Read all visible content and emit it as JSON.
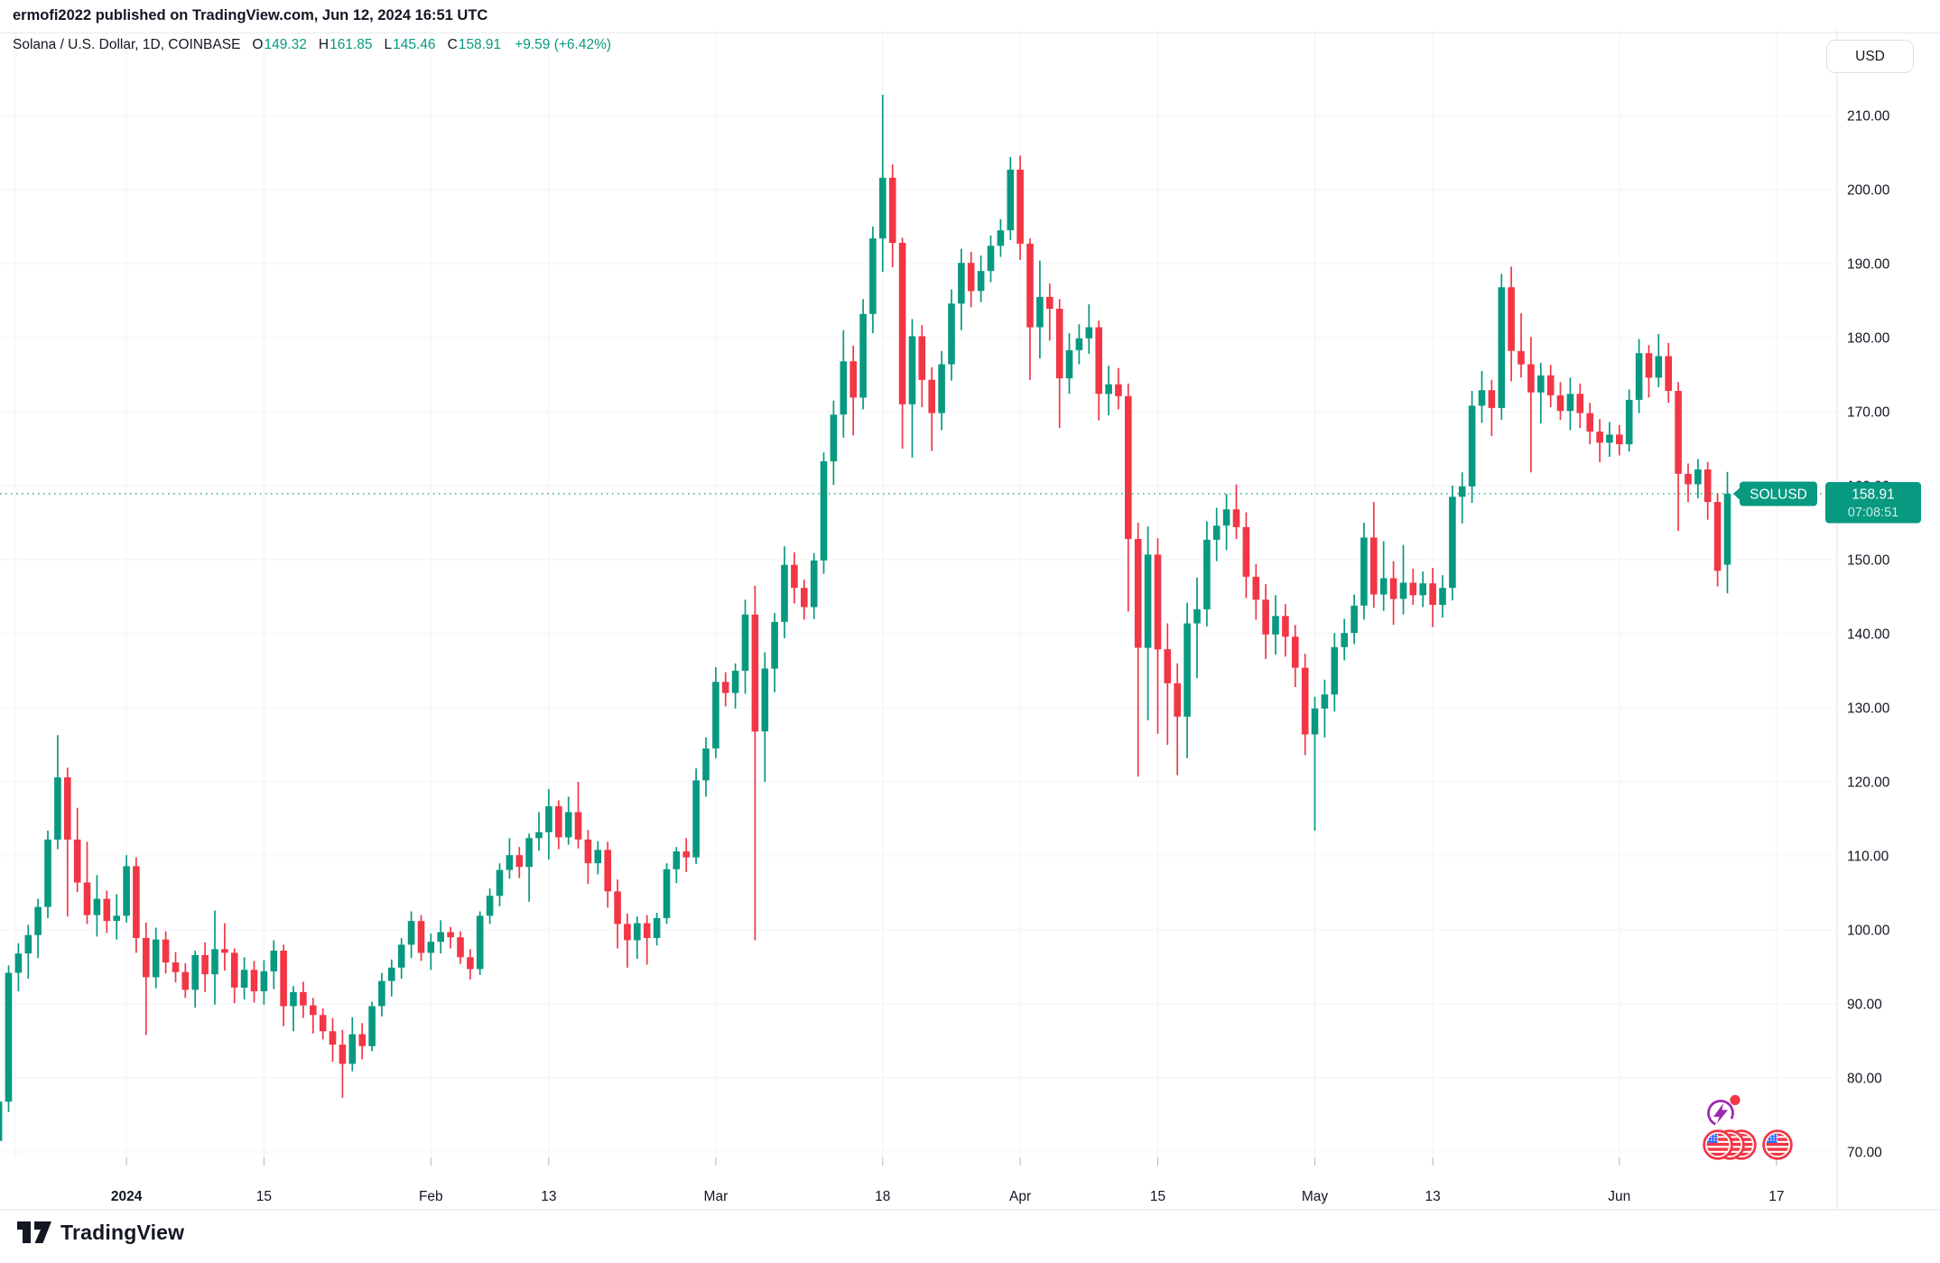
{
  "header": {
    "published_line": "ermofi2022 published on TradingView.com, Jun 12, 2024 16:51 UTC"
  },
  "toolbar": {
    "currency_button": "USD"
  },
  "symbol_info": {
    "title": "Solana / U.S. Dollar, 1D, COINBASE",
    "ohlc": {
      "o_label": "O",
      "o_value": "149.32",
      "h_label": "H",
      "h_value": "161.85",
      "l_label": "L",
      "l_value": "145.46",
      "c_label": "C",
      "c_value": "158.91",
      "change": "+9.59 (+6.42%)"
    }
  },
  "price_label": {
    "symbol": "SOLUSD",
    "price": "158.91",
    "countdown": "07:08:51"
  },
  "logo": {
    "brand": "TradingView"
  },
  "colors": {
    "up": "#089981",
    "down": "#f23645",
    "grid": "#f0f3fa",
    "axis_text": "#131722",
    "separator": "#e0e3eb",
    "badge_bg": "#089981",
    "flash_icon": "#9c27b0",
    "flag_ring": "#f23645",
    "flag_canton": "#2962ff",
    "alert_dot": "#f23645"
  },
  "event_icons": {
    "flash_event": "economic-flash-event-icon",
    "us_flag_events_grouped": 3,
    "us_flag_events_single": 1
  },
  "chart_data": {
    "type": "candlestick",
    "title": "Solana / U.S. Dollar, 1D, COINBASE",
    "symbol": "SOLUSD",
    "interval": "1D",
    "exchange": "COINBASE",
    "last_price": 158.91,
    "ylim": [
      62,
      222
    ],
    "y_axis": {
      "tick_min": 70,
      "tick_max": 210,
      "tick_step": 10,
      "decimals": 2
    },
    "x_axis": {
      "start_date": "2023-12-18",
      "labels": [
        {
          "t": "2024",
          "offset": 14,
          "bold": true
        },
        {
          "t": "15",
          "offset": 28
        },
        {
          "t": "Feb",
          "offset": 45
        },
        {
          "t": "13",
          "offset": 57
        },
        {
          "t": "Mar",
          "offset": 74
        },
        {
          "t": "18",
          "offset": 91
        },
        {
          "t": "Apr",
          "offset": 105
        },
        {
          "t": "15",
          "offset": 119
        },
        {
          "t": "May",
          "offset": 135
        },
        {
          "t": "13",
          "offset": 147
        },
        {
          "t": "Jun",
          "offset": 166
        },
        {
          "t": "17",
          "offset": 182
        }
      ]
    },
    "candles_format": [
      "open",
      "high",
      "low",
      "close"
    ],
    "candles": [
      [
        73,
        74.5,
        69.8,
        71.5
      ],
      [
        71.5,
        77.9,
        70.9,
        76.8
      ],
      [
        76.8,
        95.2,
        75.4,
        94.2
      ],
      [
        94.2,
        98.2,
        91.7,
        96.8
      ],
      [
        96.8,
        100.7,
        93.4,
        99.3
      ],
      [
        99.3,
        104.2,
        96.2,
        103.1
      ],
      [
        103.1,
        113.4,
        101.6,
        112.2
      ],
      [
        112.2,
        126.3,
        110.9,
        120.6
      ],
      [
        120.6,
        121.9,
        101.8,
        112.2
      ],
      [
        112.2,
        116.5,
        105.1,
        106.4
      ],
      [
        106.4,
        111.9,
        100.8,
        102
      ],
      [
        102,
        107.4,
        99.1,
        104.2
      ],
      [
        104.2,
        105.3,
        99.6,
        101.2
      ],
      [
        101.2,
        104.8,
        98.7,
        101.9
      ],
      [
        101.9,
        110.1,
        101,
        108.6
      ],
      [
        108.6,
        109.8,
        96.9,
        98.9
      ],
      [
        98.9,
        101,
        85.8,
        93.6
      ],
      [
        93.6,
        100.3,
        92.1,
        98.7
      ],
      [
        98.7,
        99.8,
        94.1,
        95.6
      ],
      [
        95.6,
        97,
        92.9,
        94.3
      ],
      [
        94.3,
        95.5,
        90.8,
        91.9
      ],
      [
        91.9,
        97.2,
        89.5,
        96.6
      ],
      [
        96.6,
        98.3,
        91.6,
        94
      ],
      [
        94,
        102.6,
        89.9,
        97.4
      ],
      [
        97.4,
        100.9,
        94.5,
        96.9
      ],
      [
        96.9,
        97.5,
        90.1,
        92.2
      ],
      [
        92.2,
        96.3,
        90.6,
        94.6
      ],
      [
        94.6,
        95.8,
        90.2,
        91.7
      ],
      [
        91.7,
        95.9,
        89.9,
        94.4
      ],
      [
        94.4,
        98.6,
        92,
        97.2
      ],
      [
        97.2,
        98,
        87,
        89.7
      ],
      [
        89.7,
        92.4,
        86.3,
        91.6
      ],
      [
        91.6,
        93,
        88.1,
        89.8
      ],
      [
        89.8,
        90.8,
        86,
        88.5
      ],
      [
        88.5,
        89.4,
        85.2,
        86.3
      ],
      [
        86.3,
        88.1,
        82.2,
        84.5
      ],
      [
        84.5,
        86.5,
        77.3,
        81.9
      ],
      [
        81.9,
        88.2,
        80.9,
        85.9
      ],
      [
        85.9,
        87.4,
        82.5,
        84.3
      ],
      [
        84.3,
        90.3,
        83.6,
        89.7
      ],
      [
        89.7,
        94.2,
        88.3,
        93.1
      ],
      [
        93.1,
        96,
        91,
        94.9
      ],
      [
        94.9,
        98.9,
        93.4,
        98
      ],
      [
        98,
        102.5,
        96.2,
        101.2
      ],
      [
        101.2,
        102,
        95.8,
        96.9
      ],
      [
        96.9,
        99.5,
        94.6,
        98.4
      ],
      [
        98.4,
        101.3,
        96.8,
        99.7
      ],
      [
        99.7,
        100.4,
        97.5,
        99
      ],
      [
        99,
        99.8,
        95.4,
        96.3
      ],
      [
        96.3,
        97.4,
        93.3,
        94.7
      ],
      [
        94.7,
        102.5,
        93.9,
        101.9
      ],
      [
        101.9,
        105.6,
        100.8,
        104.6
      ],
      [
        104.6,
        109,
        103.2,
        108.1
      ],
      [
        108.1,
        112.4,
        106.9,
        110.1
      ],
      [
        110.1,
        111.2,
        107,
        108.5
      ],
      [
        108.5,
        113,
        103.8,
        112.4
      ],
      [
        112.4,
        115.9,
        110.7,
        113.2
      ],
      [
        113.2,
        119,
        109.5,
        116.7
      ],
      [
        116.7,
        117.5,
        110.9,
        112.5
      ],
      [
        112.5,
        118,
        111.5,
        115.9
      ],
      [
        115.9,
        120,
        111,
        112.2
      ],
      [
        112.2,
        113.5,
        106.2,
        109
      ],
      [
        109,
        112,
        107.5,
        110.8
      ],
      [
        110.8,
        111.9,
        103,
        105.2
      ],
      [
        105.2,
        106.8,
        97.5,
        100.8
      ],
      [
        100.8,
        102.2,
        94.9,
        98.6
      ],
      [
        98.6,
        101.8,
        96.1,
        100.9
      ],
      [
        100.9,
        102,
        95.3,
        98.9
      ],
      [
        98.9,
        102.3,
        97.9,
        101.6
      ],
      [
        101.6,
        109,
        100.8,
        108.2
      ],
      [
        108.2,
        111.2,
        106.3,
        110.6
      ],
      [
        110.6,
        112.4,
        107.8,
        109.8
      ],
      [
        109.8,
        121.8,
        108.9,
        120.2
      ],
      [
        120.2,
        126,
        118,
        124.5
      ],
      [
        124.5,
        135.5,
        123.2,
        133.5
      ],
      [
        133.5,
        134.8,
        130.2,
        132
      ],
      [
        132,
        136,
        129.9,
        135
      ],
      [
        135,
        144.6,
        131.9,
        142.6
      ],
      [
        142.6,
        146.5,
        98.6,
        126.8
      ],
      [
        126.8,
        137.5,
        120,
        135.3
      ],
      [
        135.3,
        142.8,
        132.1,
        141.6
      ],
      [
        141.6,
        151.8,
        139.4,
        149.3
      ],
      [
        149.3,
        151,
        144.1,
        146.2
      ],
      [
        146.2,
        147.3,
        141.9,
        143.6
      ],
      [
        143.6,
        150.9,
        142,
        149.9
      ],
      [
        149.9,
        164.5,
        148.1,
        163.3
      ],
      [
        163.3,
        171.5,
        160.1,
        169.6
      ],
      [
        169.6,
        181,
        166.5,
        176.8
      ],
      [
        176.8,
        178.9,
        166.8,
        171.9
      ],
      [
        171.9,
        185.2,
        170.3,
        183.2
      ],
      [
        183.2,
        195,
        180.6,
        193.4
      ],
      [
        193.4,
        212.8,
        188.9,
        201.6
      ],
      [
        201.6,
        203.4,
        189.5,
        192.8
      ],
      [
        192.8,
        193.5,
        165,
        171
      ],
      [
        171,
        182.5,
        163.8,
        180.2
      ],
      [
        180.2,
        181.7,
        170.6,
        174.3
      ],
      [
        174.3,
        176,
        164.7,
        169.8
      ],
      [
        169.8,
        178.2,
        167.5,
        176.4
      ],
      [
        176.4,
        186.5,
        174.2,
        184.6
      ],
      [
        184.6,
        192,
        181,
        190.1
      ],
      [
        190.1,
        191.6,
        184.1,
        186.3
      ],
      [
        186.3,
        191.1,
        184.8,
        189
      ],
      [
        189,
        193.8,
        187.5,
        192.4
      ],
      [
        192.4,
        196,
        190.9,
        194.5
      ],
      [
        194.5,
        204.4,
        193.2,
        202.7
      ],
      [
        202.7,
        204.6,
        190.5,
        192.7
      ],
      [
        192.7,
        193.4,
        174.3,
        181.4
      ],
      [
        181.4,
        190.4,
        177.2,
        185.5
      ],
      [
        185.5,
        187.3,
        179.6,
        183.9
      ],
      [
        183.9,
        185.2,
        167.8,
        174.5
      ],
      [
        174.5,
        180.6,
        172.4,
        178.3
      ],
      [
        178.3,
        181.8,
        176.4,
        179.9
      ],
      [
        179.9,
        184.5,
        177.8,
        181.4
      ],
      [
        181.4,
        182.3,
        168.8,
        172.4
      ],
      [
        172.4,
        176.2,
        169.5,
        173.7
      ],
      [
        173.7,
        175.9,
        170.3,
        172.1
      ],
      [
        172.1,
        173.8,
        143,
        152.8
      ],
      [
        152.8,
        155,
        120.7,
        138.1
      ],
      [
        138.1,
        154.5,
        128.3,
        150.7
      ],
      [
        150.7,
        152.9,
        126.5,
        137.9
      ],
      [
        137.9,
        141.4,
        125,
        133.3
      ],
      [
        133.3,
        136,
        120.9,
        128.8
      ],
      [
        128.8,
        144.2,
        123.2,
        141.4
      ],
      [
        141.4,
        147.6,
        134,
        143.3
      ],
      [
        143.3,
        155.2,
        141,
        152.7
      ],
      [
        152.7,
        157,
        149.8,
        154.6
      ],
      [
        154.6,
        158.9,
        151.3,
        156.8
      ],
      [
        156.8,
        160.2,
        152.8,
        154.4
      ],
      [
        154.4,
        156.4,
        144.8,
        147.7
      ],
      [
        147.7,
        149.4,
        141.9,
        144.6
      ],
      [
        144.6,
        146.7,
        136.6,
        139.9
      ],
      [
        139.9,
        145.2,
        137.2,
        142.4
      ],
      [
        142.4,
        144,
        136.9,
        139.6
      ],
      [
        139.6,
        141.2,
        132.8,
        135.4
      ],
      [
        135.4,
        137.3,
        123.6,
        126.4
      ],
      [
        126.4,
        131.5,
        113.4,
        129.9
      ],
      [
        129.9,
        133.8,
        126,
        131.8
      ],
      [
        131.8,
        140.1,
        129.5,
        138.2
      ],
      [
        138.2,
        142,
        136.4,
        140.1
      ],
      [
        140.1,
        145.3,
        138.6,
        143.8
      ],
      [
        143.8,
        155,
        141.9,
        153
      ],
      [
        153,
        157.8,
        143.5,
        145.3
      ],
      [
        145.3,
        152.5,
        143.1,
        147.5
      ],
      [
        147.5,
        149.8,
        141.2,
        144.7
      ],
      [
        144.7,
        152,
        142.6,
        146.9
      ],
      [
        146.9,
        148.8,
        143.9,
        145.2
      ],
      [
        145.2,
        148.4,
        143.6,
        146.8
      ],
      [
        146.8,
        148.9,
        140.9,
        143.9
      ],
      [
        143.9,
        147.9,
        142.2,
        146.2
      ],
      [
        146.2,
        160,
        144.5,
        158.5
      ],
      [
        158.5,
        161.8,
        154.9,
        159.9
      ],
      [
        159.9,
        172.8,
        157.7,
        170.8
      ],
      [
        170.8,
        175.5,
        168.5,
        172.9
      ],
      [
        172.9,
        174.3,
        166.7,
        170.5
      ],
      [
        170.5,
        188.6,
        168.9,
        186.8
      ],
      [
        186.8,
        189.6,
        174.1,
        178.2
      ],
      [
        178.2,
        183.3,
        174.6,
        176.4
      ],
      [
        176.4,
        180.1,
        161.8,
        172.6
      ],
      [
        172.6,
        176.6,
        168.4,
        174.9
      ],
      [
        174.9,
        176.3,
        170.6,
        172.2
      ],
      [
        172.2,
        174,
        168.9,
        170.1
      ],
      [
        170.1,
        174.6,
        167.5,
        172.4
      ],
      [
        172.4,
        173.8,
        167.8,
        169.8
      ],
      [
        169.8,
        171.2,
        165.6,
        167.3
      ],
      [
        167.3,
        169,
        163.2,
        165.8
      ],
      [
        165.8,
        168.6,
        163.9,
        166.9
      ],
      [
        166.9,
        168.2,
        164.1,
        165.6
      ],
      [
        165.6,
        173,
        164.6,
        171.6
      ],
      [
        171.6,
        179.8,
        169.8,
        177.9
      ],
      [
        177.9,
        179,
        171.9,
        174.6
      ],
      [
        174.6,
        180.5,
        173.3,
        177.5
      ],
      [
        177.5,
        179.3,
        171.2,
        172.8
      ],
      [
        172.8,
        174,
        153.9,
        161.6
      ],
      [
        161.6,
        163,
        157.8,
        160.2
      ],
      [
        160.2,
        163.6,
        158.3,
        162.2
      ],
      [
        162.2,
        163.2,
        155.4,
        157.8
      ],
      [
        157.8,
        159,
        146.4,
        148.5
      ],
      [
        149.32,
        161.85,
        145.46,
        158.91
      ]
    ]
  }
}
